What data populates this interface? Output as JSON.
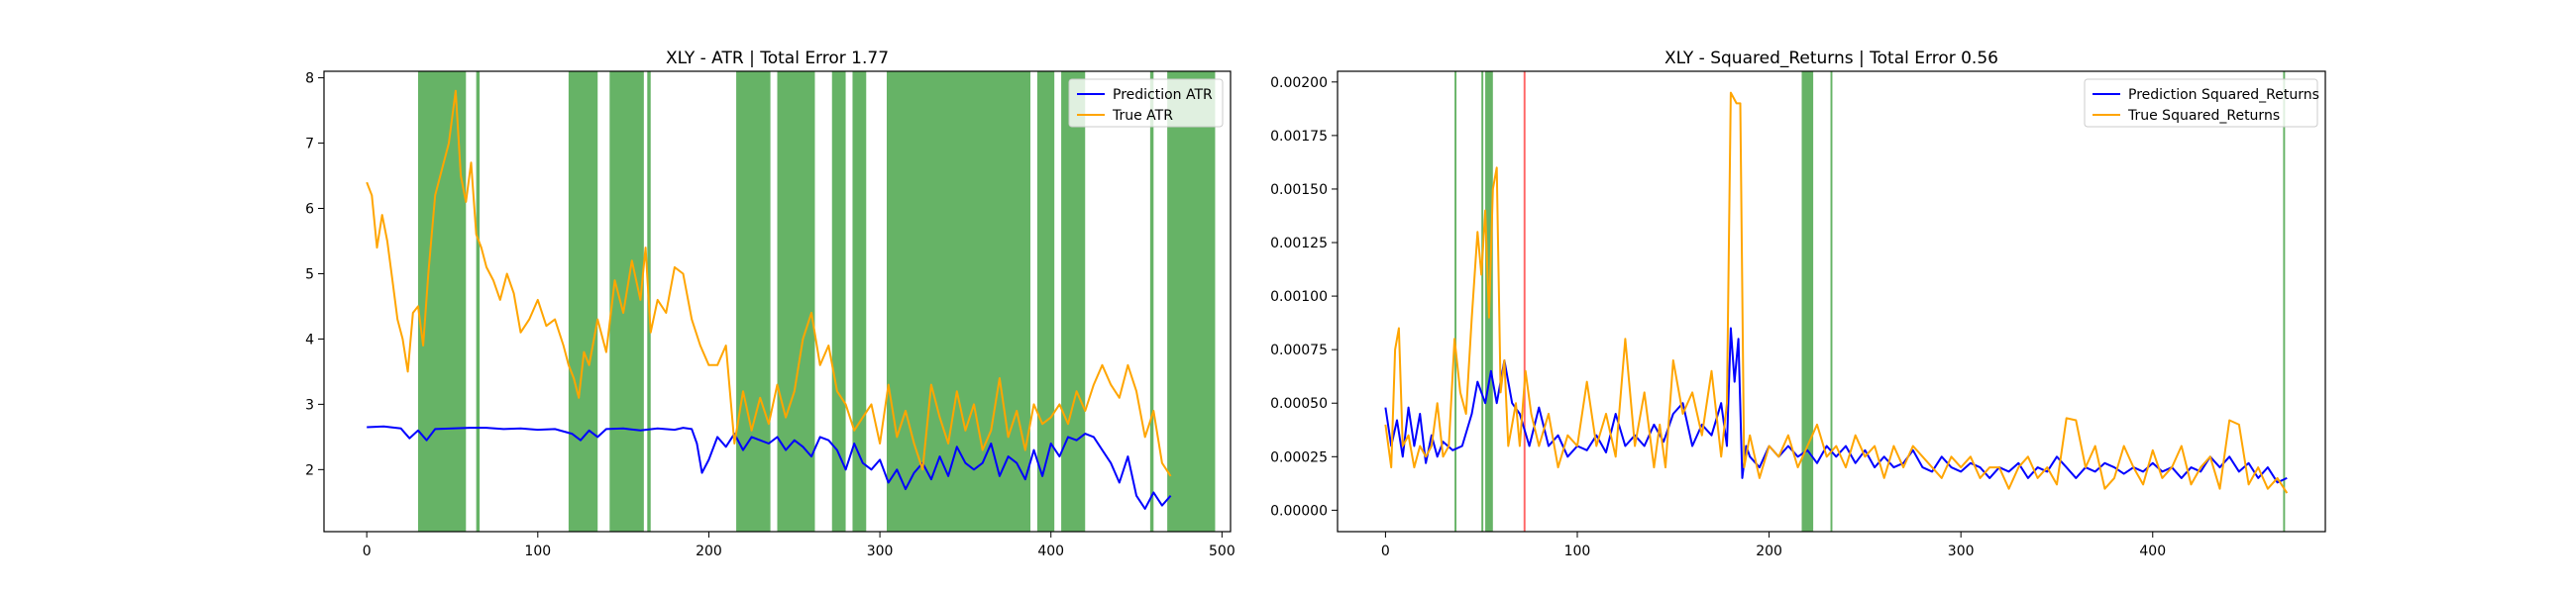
{
  "chart_data": [
    {
      "type": "line",
      "title": "XLY - ATR | Total Error 1.77",
      "xlabel": "",
      "ylabel": "",
      "xlim": [
        -25,
        505
      ],
      "ylim": [
        1.05,
        8.1
      ],
      "xticks": [
        0,
        100,
        200,
        300,
        400,
        500
      ],
      "yticks": [
        2,
        3,
        4,
        5,
        6,
        7,
        8
      ],
      "ytick_labels": [
        "2",
        "3",
        "4",
        "5",
        "6",
        "7",
        "8"
      ],
      "grid": false,
      "legend_position": "top-right",
      "series": [
        {
          "name": "Prediction ATR",
          "color": "#0000ff",
          "x": [
            0,
            10,
            20,
            25,
            30,
            35,
            40,
            50,
            60,
            70,
            80,
            90,
            100,
            110,
            120,
            125,
            130,
            135,
            140,
            150,
            160,
            170,
            180,
            185,
            190,
            193,
            196,
            200,
            205,
            210,
            215,
            220,
            225,
            230,
            235,
            240,
            245,
            250,
            255,
            260,
            265,
            270,
            275,
            280,
            285,
            290,
            295,
            300,
            305,
            310,
            315,
            320,
            325,
            330,
            335,
            340,
            345,
            350,
            355,
            360,
            365,
            370,
            375,
            380,
            385,
            390,
            395,
            400,
            405,
            410,
            415,
            420,
            425,
            430,
            435,
            440,
            445,
            450,
            455,
            460,
            465,
            470
          ],
          "values": [
            2.65,
            2.66,
            2.63,
            2.48,
            2.6,
            2.45,
            2.62,
            2.63,
            2.64,
            2.64,
            2.62,
            2.63,
            2.61,
            2.62,
            2.55,
            2.45,
            2.6,
            2.5,
            2.62,
            2.63,
            2.6,
            2.63,
            2.61,
            2.64,
            2.62,
            2.4,
            1.95,
            2.15,
            2.5,
            2.35,
            2.55,
            2.3,
            2.5,
            2.45,
            2.4,
            2.5,
            2.3,
            2.45,
            2.35,
            2.2,
            2.5,
            2.45,
            2.3,
            2.0,
            2.4,
            2.1,
            2.0,
            2.15,
            1.8,
            2.0,
            1.7,
            1.95,
            2.1,
            1.85,
            2.2,
            1.9,
            2.35,
            2.1,
            2.0,
            2.1,
            2.4,
            1.9,
            2.2,
            2.1,
            1.85,
            2.3,
            1.9,
            2.4,
            2.2,
            2.5,
            2.45,
            2.55,
            2.5,
            2.3,
            2.1,
            1.8,
            2.2,
            1.6,
            1.4,
            1.65,
            1.45,
            1.6
          ]
        },
        {
          "name": "True ATR",
          "color": "#ffa500",
          "x": [
            0,
            3,
            6,
            9,
            12,
            15,
            18,
            21,
            24,
            27,
            30,
            33,
            36,
            40,
            44,
            48,
            52,
            55,
            58,
            61,
            64,
            67,
            70,
            74,
            78,
            82,
            86,
            90,
            95,
            100,
            105,
            110,
            115,
            118,
            121,
            124,
            127,
            130,
            135,
            140,
            145,
            150,
            155,
            160,
            163,
            166,
            170,
            175,
            180,
            185,
            190,
            195,
            200,
            205,
            210,
            215,
            220,
            225,
            230,
            235,
            240,
            245,
            250,
            255,
            260,
            265,
            270,
            275,
            280,
            285,
            290,
            295,
            300,
            305,
            310,
            315,
            320,
            325,
            330,
            335,
            340,
            345,
            350,
            355,
            360,
            365,
            370,
            375,
            380,
            385,
            390,
            395,
            400,
            405,
            410,
            415,
            420,
            425,
            430,
            435,
            440,
            445,
            450,
            455,
            460,
            465,
            470
          ],
          "values": [
            6.4,
            6.2,
            5.4,
            5.9,
            5.5,
            4.9,
            4.3,
            4.0,
            3.5,
            4.4,
            4.5,
            3.9,
            5.0,
            6.2,
            6.6,
            7.0,
            7.8,
            6.5,
            6.1,
            6.7,
            5.6,
            5.4,
            5.1,
            4.9,
            4.6,
            5.0,
            4.7,
            4.1,
            4.3,
            4.6,
            4.2,
            4.3,
            3.9,
            3.6,
            3.4,
            3.1,
            3.8,
            3.6,
            4.3,
            3.8,
            4.9,
            4.4,
            5.2,
            4.6,
            5.4,
            4.1,
            4.6,
            4.4,
            5.1,
            5.0,
            4.3,
            3.9,
            3.6,
            3.6,
            3.9,
            2.4,
            3.2,
            2.6,
            3.1,
            2.7,
            3.3,
            2.8,
            3.2,
            4.0,
            4.4,
            3.6,
            3.9,
            3.2,
            3.0,
            2.6,
            2.8,
            3.0,
            2.4,
            3.3,
            2.5,
            2.9,
            2.4,
            2.0,
            3.3,
            2.8,
            2.4,
            3.2,
            2.6,
            3.0,
            2.3,
            2.6,
            3.4,
            2.5,
            2.9,
            2.3,
            3.0,
            2.7,
            2.8,
            3.0,
            2.7,
            3.2,
            2.9,
            3.3,
            3.6,
            3.3,
            3.1,
            3.6,
            3.2,
            2.5,
            2.9,
            2.1,
            1.9
          ]
        }
      ],
      "shaded_bands": [
        {
          "color": "#008000",
          "ranges": [
            [
              30,
              58
            ],
            [
              64,
              66
            ],
            [
              118,
              135
            ],
            [
              142,
              162
            ],
            [
              164,
              166
            ],
            [
              216,
              236
            ],
            [
              240,
              262
            ],
            [
              272,
              280
            ],
            [
              284,
              292
            ],
            [
              304,
              388
            ],
            [
              392,
              402
            ],
            [
              406,
              420
            ],
            [
              458,
              460
            ],
            [
              468,
              496
            ]
          ]
        }
      ]
    },
    {
      "type": "line",
      "title": "XLY - Squared_Returns | Total Error 0.56",
      "xlabel": "",
      "ylabel": "",
      "xlim": [
        -25,
        490
      ],
      "ylim": [
        -0.0001,
        0.00205
      ],
      "xticks": [
        0,
        100,
        200,
        300,
        400
      ],
      "yticks": [
        0.0,
        0.00025,
        0.0005,
        0.00075,
        0.001,
        0.00125,
        0.0015,
        0.00175,
        0.002
      ],
      "ytick_labels": [
        "0.00000",
        "0.00025",
        "0.00050",
        "0.00075",
        "0.00100",
        "0.00125",
        "0.00150",
        "0.00175",
        "0.00200"
      ],
      "grid": false,
      "legend_position": "top-right",
      "series": [
        {
          "name": "Prediction Squared_Returns",
          "color": "#0000ff",
          "x": [
            0,
            3,
            6,
            9,
            12,
            15,
            18,
            21,
            24,
            27,
            30,
            35,
            40,
            45,
            48,
            52,
            55,
            58,
            62,
            66,
            70,
            75,
            80,
            85,
            90,
            95,
            100,
            105,
            110,
            115,
            120,
            125,
            130,
            135,
            140,
            145,
            150,
            155,
            160,
            165,
            170,
            175,
            178,
            180,
            182,
            184,
            186,
            188,
            190,
            195,
            200,
            205,
            210,
            215,
            220,
            225,
            230,
            235,
            240,
            245,
            250,
            255,
            260,
            265,
            270,
            275,
            280,
            285,
            290,
            295,
            300,
            305,
            310,
            315,
            320,
            325,
            330,
            335,
            340,
            345,
            350,
            355,
            360,
            365,
            370,
            375,
            380,
            385,
            390,
            395,
            400,
            405,
            410,
            415,
            420,
            425,
            430,
            435,
            440,
            445,
            450,
            455,
            460,
            465,
            470
          ],
          "values": [
            0.00048,
            0.0003,
            0.00042,
            0.00025,
            0.00048,
            0.0003,
            0.00045,
            0.00022,
            0.00035,
            0.00025,
            0.00032,
            0.00028,
            0.0003,
            0.00045,
            0.0006,
            0.0005,
            0.00065,
            0.0005,
            0.0007,
            0.0005,
            0.00045,
            0.0003,
            0.00048,
            0.0003,
            0.00035,
            0.00025,
            0.0003,
            0.00028,
            0.00035,
            0.00027,
            0.00045,
            0.0003,
            0.00035,
            0.0003,
            0.0004,
            0.00032,
            0.00045,
            0.0005,
            0.0003,
            0.0004,
            0.00035,
            0.0005,
            0.0003,
            0.00085,
            0.0006,
            0.0008,
            0.00015,
            0.0003,
            0.00025,
            0.0002,
            0.0003,
            0.00025,
            0.0003,
            0.00025,
            0.00028,
            0.00022,
            0.0003,
            0.00025,
            0.0003,
            0.00022,
            0.00028,
            0.0002,
            0.00025,
            0.0002,
            0.00022,
            0.00028,
            0.0002,
            0.00018,
            0.00025,
            0.0002,
            0.00018,
            0.00022,
            0.0002,
            0.00015,
            0.0002,
            0.00018,
            0.00022,
            0.00015,
            0.0002,
            0.00018,
            0.00025,
            0.0002,
            0.00015,
            0.0002,
            0.00018,
            0.00022,
            0.0002,
            0.00017,
            0.0002,
            0.00018,
            0.00022,
            0.00018,
            0.0002,
            0.00015,
            0.0002,
            0.00018,
            0.00025,
            0.0002,
            0.00025,
            0.00018,
            0.00022,
            0.00015,
            0.0002,
            0.00013,
            0.00015
          ]
        },
        {
          "name": "True Squared_Returns",
          "color": "#ffa500",
          "x": [
            0,
            3,
            5,
            7,
            9,
            12,
            15,
            18,
            21,
            24,
            27,
            30,
            33,
            36,
            39,
            42,
            45,
            48,
            50,
            52,
            54,
            56,
            58,
            60,
            62,
            64,
            66,
            68,
            70,
            73,
            76,
            80,
            85,
            90,
            95,
            100,
            105,
            110,
            115,
            120,
            125,
            130,
            135,
            140,
            143,
            146,
            150,
            155,
            160,
            165,
            170,
            175,
            178,
            180,
            183,
            185,
            187,
            190,
            195,
            200,
            205,
            210,
            215,
            220,
            225,
            230,
            235,
            240,
            245,
            250,
            255,
            260,
            265,
            270,
            275,
            280,
            285,
            290,
            295,
            300,
            305,
            310,
            315,
            320,
            325,
            330,
            335,
            340,
            345,
            350,
            355,
            360,
            365,
            370,
            375,
            380,
            385,
            390,
            395,
            400,
            405,
            410,
            415,
            420,
            425,
            430,
            435,
            440,
            445,
            450,
            455,
            460,
            465,
            470
          ],
          "values": [
            0.0004,
            0.0002,
            0.00075,
            0.00085,
            0.0003,
            0.00035,
            0.0002,
            0.0003,
            0.00025,
            0.0003,
            0.0005,
            0.00025,
            0.0003,
            0.0008,
            0.00055,
            0.00045,
            0.0009,
            0.0013,
            0.0011,
            0.0014,
            0.0009,
            0.0015,
            0.0016,
            0.00055,
            0.0007,
            0.0003,
            0.0004,
            0.0005,
            0.0003,
            0.00065,
            0.00045,
            0.0003,
            0.00045,
            0.0002,
            0.00035,
            0.0003,
            0.0006,
            0.0003,
            0.00045,
            0.00025,
            0.0008,
            0.0003,
            0.00055,
            0.0002,
            0.0004,
            0.0002,
            0.0007,
            0.00045,
            0.00055,
            0.00035,
            0.00065,
            0.00025,
            0.0005,
            0.00195,
            0.0019,
            0.0019,
            0.0002,
            0.00035,
            0.00015,
            0.0003,
            0.00025,
            0.00035,
            0.0002,
            0.0003,
            0.0004,
            0.00025,
            0.0003,
            0.0002,
            0.00035,
            0.00025,
            0.0003,
            0.00015,
            0.0003,
            0.0002,
            0.0003,
            0.00025,
            0.0002,
            0.00015,
            0.00025,
            0.0002,
            0.00025,
            0.00015,
            0.0002,
            0.0002,
            0.0001,
            0.0002,
            0.00025,
            0.00015,
            0.0002,
            0.00012,
            0.00043,
            0.00042,
            0.0002,
            0.0003,
            0.0001,
            0.00015,
            0.0003,
            0.0002,
            0.00012,
            0.00028,
            0.00015,
            0.0002,
            0.0003,
            0.00012,
            0.0002,
            0.00025,
            0.0001,
            0.00042,
            0.0004,
            0.00012,
            0.0002,
            0.0001,
            0.00015,
            8e-05
          ]
        }
      ],
      "shaded_bands": [
        {
          "color": "#008000",
          "ranges": [
            [
              36,
              37
            ],
            [
              50,
              51
            ],
            [
              52,
              56
            ],
            [
              217,
              223
            ],
            [
              232,
              233
            ],
            [
              468,
              469
            ]
          ]
        },
        {
          "color": "#ff0000",
          "ranges": [
            [
              72,
              73
            ]
          ]
        }
      ]
    }
  ]
}
